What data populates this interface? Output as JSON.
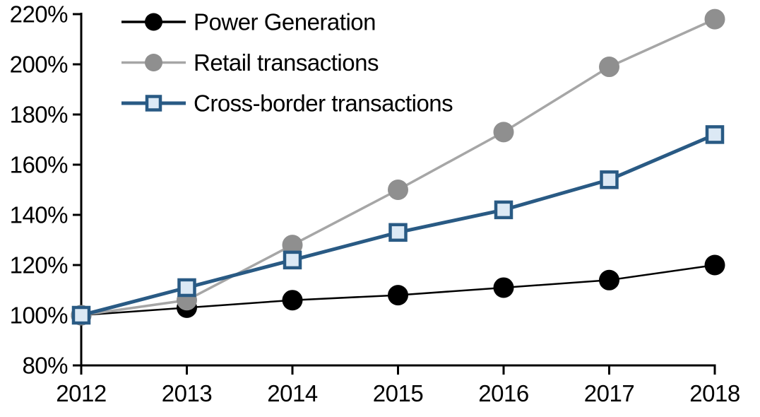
{
  "chart_data": {
    "type": "line",
    "x": [
      2012,
      2013,
      2014,
      2015,
      2016,
      2017,
      2018
    ],
    "x_tick_labels": [
      "2012",
      "2013",
      "2014",
      "2015",
      "2016",
      "2017",
      "2018"
    ],
    "y_ticks": [
      80,
      100,
      120,
      140,
      160,
      180,
      200,
      220
    ],
    "y_tick_labels": [
      "80%",
      "100%",
      "120%",
      "140%",
      "160%",
      "180%",
      "200%",
      "220%"
    ],
    "xlim": [
      2012,
      2018
    ],
    "ylim": [
      80,
      220
    ],
    "grid": false,
    "legend_position": "top-left-inside",
    "axis_color": "#000000",
    "series": [
      {
        "name": "Power Generation",
        "values": [
          100,
          103,
          106,
          108,
          111,
          114,
          120
        ],
        "line_color": "#000000",
        "line_width": 2.5,
        "marker": "circle",
        "marker_fill": "#000000",
        "marker_stroke": "#000000"
      },
      {
        "name": "Retail transactions",
        "values": [
          100,
          106,
          128,
          150,
          173,
          199,
          218
        ],
        "line_color": "#A6A6A6",
        "line_width": 3.5,
        "marker": "circle",
        "marker_fill": "#8F8F8F",
        "marker_stroke": "#8F8F8F"
      },
      {
        "name": "Cross-border transactions",
        "values": [
          100,
          111,
          122,
          133,
          142,
          154,
          172
        ],
        "line_color": "#295A84",
        "line_width": 5,
        "marker": "square",
        "marker_fill": "#DCE9F5",
        "marker_stroke": "#295A84"
      }
    ]
  }
}
